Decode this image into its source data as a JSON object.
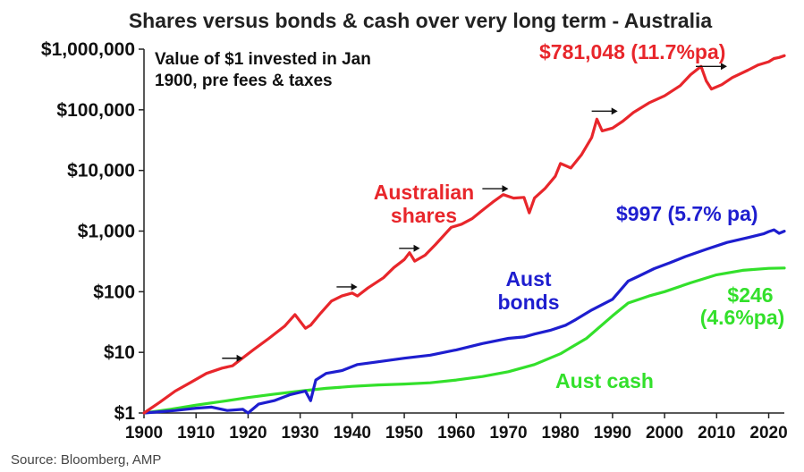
{
  "chart_data": {
    "type": "line",
    "title": "Shares versus bonds & cash over very long term - Australia",
    "note_lines": [
      "Value of $1 invested in Jan",
      "1900, pre fees & taxes"
    ],
    "source": "Source: Bloomberg, AMP",
    "xlim": [
      1900,
      2023
    ],
    "x_ticks": [
      "1900",
      "1910",
      "1920",
      "1930",
      "1940",
      "1950",
      "1960",
      "1970",
      "1980",
      "1990",
      "2000",
      "2010",
      "2020"
    ],
    "y_scale": "log",
    "ylim": [
      1,
      1000000
    ],
    "y_ticks": [
      {
        "value": 1,
        "label": "$1"
      },
      {
        "value": 10,
        "label": "$10"
      },
      {
        "value": 100,
        "label": "$100"
      },
      {
        "value": 1000,
        "label": "$1,000"
      },
      {
        "value": 10000,
        "label": "$10,000"
      },
      {
        "value": 100000,
        "label": "$100,000"
      },
      {
        "value": 1000000,
        "label": "$1,000,000"
      }
    ],
    "series": [
      {
        "name": "Australian shares",
        "color": "#e8262b",
        "label_lines": [
          "Australian",
          "shares"
        ],
        "end_label": "$781,048 (11.7%pa)",
        "points": [
          [
            1900,
            1
          ],
          [
            1903,
            1.5
          ],
          [
            1906,
            2.3
          ],
          [
            1909,
            3.2
          ],
          [
            1912,
            4.5
          ],
          [
            1915,
            5.5
          ],
          [
            1917,
            6
          ],
          [
            1918,
            7
          ],
          [
            1921,
            11
          ],
          [
            1924,
            17
          ],
          [
            1927,
            27
          ],
          [
            1929,
            42
          ],
          [
            1931,
            25
          ],
          [
            1932,
            28
          ],
          [
            1934,
            45
          ],
          [
            1936,
            70
          ],
          [
            1938,
            85
          ],
          [
            1940,
            95
          ],
          [
            1941,
            85
          ],
          [
            1943,
            115
          ],
          [
            1946,
            170
          ],
          [
            1948,
            250
          ],
          [
            1950,
            340
          ],
          [
            1951,
            440
          ],
          [
            1952,
            320
          ],
          [
            1954,
            400
          ],
          [
            1956,
            600
          ],
          [
            1959,
            1150
          ],
          [
            1961,
            1300
          ],
          [
            1963,
            1600
          ],
          [
            1965,
            2200
          ],
          [
            1967,
            3000
          ],
          [
            1969,
            4000
          ],
          [
            1971,
            3500
          ],
          [
            1973,
            3600
          ],
          [
            1974,
            2000
          ],
          [
            1975,
            3500
          ],
          [
            1977,
            5000
          ],
          [
            1979,
            8000
          ],
          [
            1980,
            13000
          ],
          [
            1982,
            11000
          ],
          [
            1984,
            18000
          ],
          [
            1986,
            35000
          ],
          [
            1987,
            70000
          ],
          [
            1988,
            45000
          ],
          [
            1990,
            50000
          ],
          [
            1992,
            65000
          ],
          [
            1994,
            90000
          ],
          [
            1997,
            130000
          ],
          [
            2000,
            170000
          ],
          [
            2003,
            250000
          ],
          [
            2005,
            380000
          ],
          [
            2007,
            520000
          ],
          [
            2008,
            300000
          ],
          [
            2009,
            220000
          ],
          [
            2011,
            260000
          ],
          [
            2013,
            340000
          ],
          [
            2016,
            450000
          ],
          [
            2018,
            550000
          ],
          [
            2020,
            620000
          ],
          [
            2021,
            700000
          ],
          [
            2022,
            730000
          ],
          [
            2023,
            781048
          ]
        ]
      },
      {
        "name": "Aust bonds",
        "color": "#1e1ecf",
        "label_lines": [
          "Aust",
          "bonds"
        ],
        "end_label": "$997 (5.7% pa)",
        "points": [
          [
            1900,
            1
          ],
          [
            1903,
            1.05
          ],
          [
            1906,
            1.1
          ],
          [
            1910,
            1.2
          ],
          [
            1913,
            1.25
          ],
          [
            1916,
            1.1
          ],
          [
            1919,
            1.15
          ],
          [
            1920,
            1
          ],
          [
            1922,
            1.4
          ],
          [
            1925,
            1.6
          ],
          [
            1928,
            2
          ],
          [
            1931,
            2.3
          ],
          [
            1932,
            1.6
          ],
          [
            1933,
            3.5
          ],
          [
            1935,
            4.5
          ],
          [
            1938,
            5
          ],
          [
            1941,
            6.3
          ],
          [
            1945,
            7
          ],
          [
            1950,
            8
          ],
          [
            1955,
            9
          ],
          [
            1960,
            11
          ],
          [
            1965,
            14
          ],
          [
            1970,
            17
          ],
          [
            1973,
            18
          ],
          [
            1975,
            20
          ],
          [
            1978,
            23
          ],
          [
            1981,
            28
          ],
          [
            1983,
            35
          ],
          [
            1986,
            50
          ],
          [
            1990,
            75
          ],
          [
            1993,
            150
          ],
          [
            1995,
            180
          ],
          [
            1998,
            240
          ],
          [
            2001,
            300
          ],
          [
            2004,
            380
          ],
          [
            2008,
            500
          ],
          [
            2012,
            650
          ],
          [
            2016,
            780
          ],
          [
            2019,
            900
          ],
          [
            2020,
            980
          ],
          [
            2021,
            1050
          ],
          [
            2022,
            920
          ],
          [
            2023,
            997
          ]
        ]
      },
      {
        "name": "Aust cash",
        "color": "#33e02b",
        "label_lines": [
          "Aust cash"
        ],
        "end_label_lines": [
          "$246",
          "(4.6%pa)"
        ],
        "points": [
          [
            1900,
            1
          ],
          [
            1905,
            1.15
          ],
          [
            1910,
            1.35
          ],
          [
            1915,
            1.55
          ],
          [
            1920,
            1.8
          ],
          [
            1925,
            2.05
          ],
          [
            1930,
            2.3
          ],
          [
            1935,
            2.55
          ],
          [
            1940,
            2.75
          ],
          [
            1945,
            2.9
          ],
          [
            1950,
            3
          ],
          [
            1955,
            3.15
          ],
          [
            1960,
            3.5
          ],
          [
            1965,
            4
          ],
          [
            1970,
            4.8
          ],
          [
            1975,
            6.3
          ],
          [
            1980,
            9.5
          ],
          [
            1985,
            17
          ],
          [
            1990,
            40
          ],
          [
            1993,
            65
          ],
          [
            1997,
            85
          ],
          [
            2000,
            100
          ],
          [
            2005,
            140
          ],
          [
            2010,
            190
          ],
          [
            2015,
            225
          ],
          [
            2020,
            243
          ],
          [
            2023,
            246
          ]
        ]
      }
    ],
    "annotations": "black arrows marking share market plateaus"
  }
}
